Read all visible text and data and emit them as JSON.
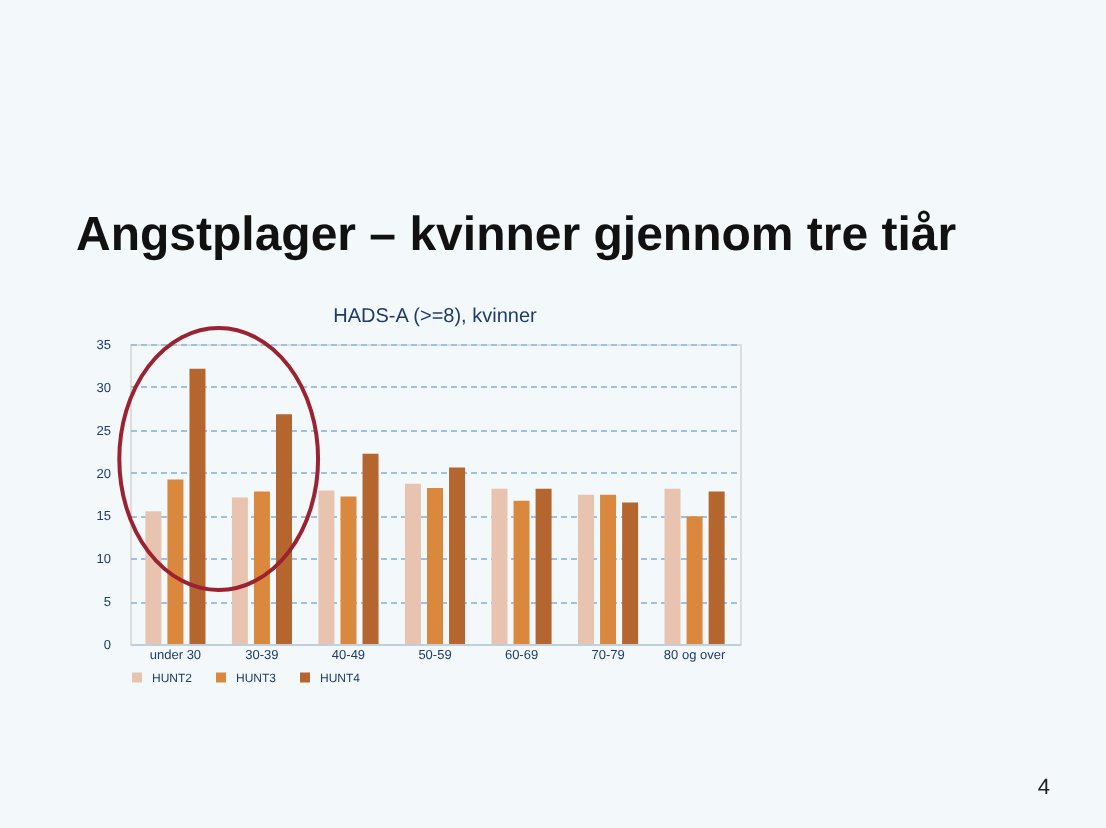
{
  "chart_data": {
    "type": "bar",
    "title": "Angstplager – kvinner gjennom tre tiår",
    "subtitle": "HADS-A (>=8), kvinner",
    "categories": [
      "under 30",
      "30-39",
      "40-49",
      "50-59",
      "60-69",
      "70-79",
      "80 og over"
    ],
    "series": [
      {
        "name": "HUNT2",
        "color": "#e8c4b0",
        "values": [
          15.5,
          17.1,
          17.9,
          18.7,
          18.1,
          17.4,
          18.1
        ]
      },
      {
        "name": "HUNT3",
        "color": "#d9883e",
        "values": [
          19.2,
          17.8,
          17.2,
          18.2,
          16.7,
          17.4,
          14.9
        ]
      },
      {
        "name": "HUNT4",
        "color": "#b5652e",
        "values": [
          32.1,
          26.8,
          22.2,
          20.6,
          18.1,
          16.5,
          17.8
        ]
      }
    ],
    "ylim": [
      0,
      35
    ],
    "yticks": [
      0,
      5,
      10,
      15,
      20,
      25,
      30,
      35
    ],
    "grid": "y",
    "legend": "bottom",
    "annotations": [
      "4"
    ]
  }
}
